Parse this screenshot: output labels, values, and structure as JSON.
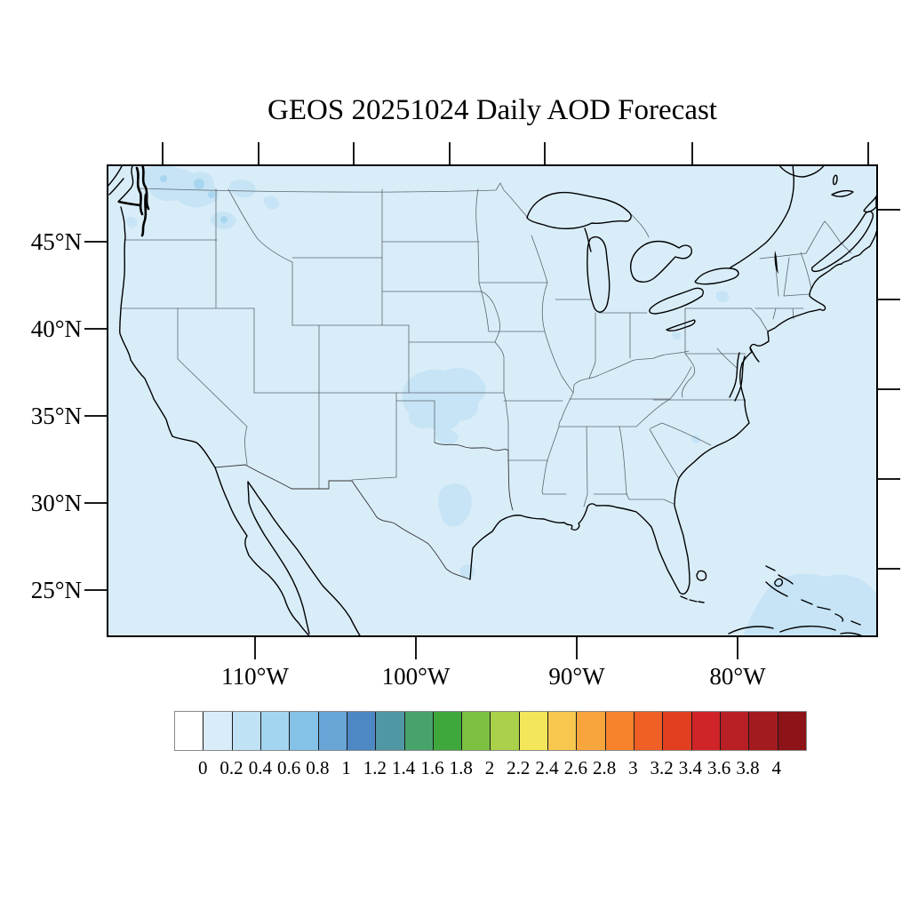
{
  "figure": {
    "title": "GEOS 20251024 Daily AOD Forecast"
  },
  "map": {
    "region": "Continental United States",
    "lat_tick_labels": [
      "45°N",
      "40°N",
      "35°N",
      "30°N",
      "25°N"
    ],
    "lon_tick_labels": [
      "110°W",
      "100°W",
      "90°W",
      "80°W"
    ]
  },
  "colorbar": {
    "tick_labels": [
      "0",
      "0.2",
      "0.4",
      "0.6",
      "0.8",
      "1",
      "1.2",
      "1.4",
      "1.6",
      "1.8",
      "2",
      "2.2",
      "2.4",
      "2.6",
      "2.8",
      "3",
      "3.2",
      "3.4",
      "3.6",
      "3.8",
      "4"
    ],
    "cell_colors": [
      "#ffffff",
      "#d9edf9",
      "#c0e2f5",
      "#a3d5f0",
      "#85c2e7",
      "#68a6d8",
      "#4d87c4",
      "#4f97a4",
      "#48a36b",
      "#3fa83d",
      "#7cc142",
      "#abd14a",
      "#f3e65b",
      "#f7c74e",
      "#f8a53e",
      "#f7832d",
      "#ef5f26",
      "#e13f20",
      "#d02428",
      "#b92025",
      "#a31b1f",
      "#8c1317"
    ]
  },
  "chart_data": {
    "type": "heatmap",
    "title": "GEOS 20251024 Daily AOD Forecast",
    "variable": "Aerosol Optical Depth (AOD), daily forecast",
    "x_tick_labels": [
      "110°W",
      "100°W",
      "90°W",
      "80°W"
    ],
    "y_tick_labels": [
      "45°N",
      "40°N",
      "35°N",
      "30°N",
      "25°N"
    ],
    "colorbar_range": [
      0,
      4
    ],
    "colorbar_step": 0.2,
    "background_value": "0.0–0.2 over nearly the entire domain",
    "elevated_regions": [
      {
        "region": "northern Washington / Idaho panhandle / northwest Montana",
        "aod": "0.2–0.4"
      },
      {
        "region": "central Kansas extending into northern Oklahoma",
        "aod": "0.2–0.4"
      },
      {
        "region": "southern Oklahoma / north-central Texas",
        "aod": "0.2–0.4"
      },
      {
        "region": "Texas Gulf coast spot",
        "aod": "0.2–0.4"
      },
      {
        "region": "Atlantic around the Bahamas (southeast corner of map)",
        "aod": "0.2–0.4"
      },
      {
        "region": "small spots in central New York and coastal North Carolina",
        "aod": "0.2–0.4"
      }
    ]
  }
}
